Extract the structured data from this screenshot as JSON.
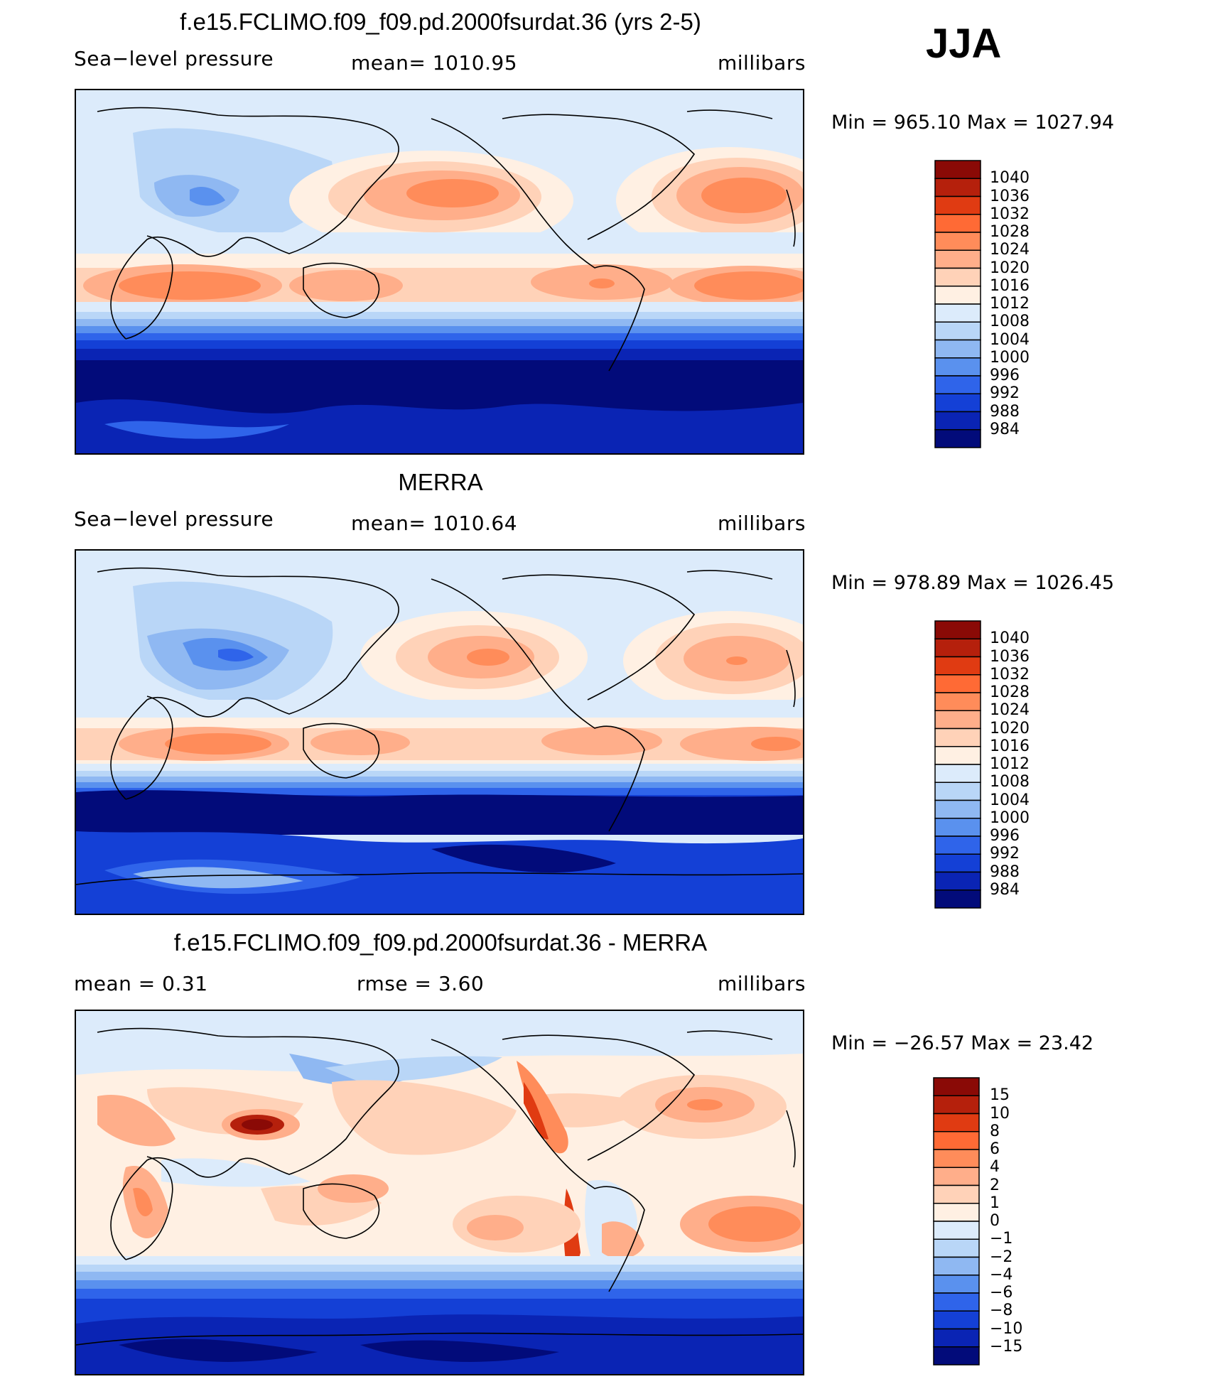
{
  "season": "JJA",
  "panels": [
    {
      "title": "f.e15.FCLIMO.f09_f09.pd.2000fsurdat.36 (yrs 2-5)",
      "left_text": "Sea−level pressure",
      "mid_text": "mean=  1010.95",
      "units": "millibars",
      "minmax": "Min  =  965.10  Max  =  1027.94",
      "colorbar": {
        "labels": [
          "1040",
          "1036",
          "1032",
          "1028",
          "1024",
          "1020",
          "1016",
          "1012",
          "1008",
          "1004",
          "1000",
          "996",
          "992",
          "988",
          "984"
        ],
        "colors": [
          "#8a0a06",
          "#b5200c",
          "#e03b12",
          "#ff6a35",
          "#ff8c5a",
          "#ffae8a",
          "#ffd2b8",
          "#fff0e3",
          "#dcebfb",
          "#b9d6f7",
          "#8fb8f2",
          "#5a91ee",
          "#2f64ea",
          "#1440d6",
          "#0a24b4",
          "#020b7a"
        ]
      }
    },
    {
      "title": "MERRA",
      "left_text": "Sea−level pressure",
      "mid_text": "mean=  1010.64",
      "units": "millibars",
      "minmax": "Min  =  978.89  Max  =  1026.45",
      "colorbar": {
        "labels": [
          "1040",
          "1036",
          "1032",
          "1028",
          "1024",
          "1020",
          "1016",
          "1012",
          "1008",
          "1004",
          "1000",
          "996",
          "992",
          "988",
          "984"
        ],
        "colors": [
          "#8a0a06",
          "#b5200c",
          "#e03b12",
          "#ff6a35",
          "#ff8c5a",
          "#ffae8a",
          "#ffd2b8",
          "#fff0e3",
          "#dcebfb",
          "#b9d6f7",
          "#8fb8f2",
          "#5a91ee",
          "#2f64ea",
          "#1440d6",
          "#0a24b4",
          "#020b7a"
        ]
      }
    },
    {
      "title": "f.e15.FCLIMO.f09_f09.pd.2000fsurdat.36 - MERRA",
      "left_text": "mean  =      0.31",
      "mid_text": "rmse  =      3.60",
      "units": "millibars",
      "minmax": "Min  =  −26.57  Max  =     23.42",
      "colorbar": {
        "labels": [
          "15",
          "10",
          "8",
          "6",
          "4",
          "2",
          "1",
          "0",
          "−1",
          "−2",
          "−4",
          "−6",
          "−8",
          "−10",
          "−15"
        ],
        "colors": [
          "#8a0a06",
          "#b5200c",
          "#e03b12",
          "#ff6a35",
          "#ff8c5a",
          "#ffae8a",
          "#ffd2b8",
          "#fff0e3",
          "#dcebfb",
          "#b9d6f7",
          "#8fb8f2",
          "#5a91ee",
          "#2f64ea",
          "#1440d6",
          "#0a24b4",
          "#020b7a"
        ]
      }
    }
  ]
}
